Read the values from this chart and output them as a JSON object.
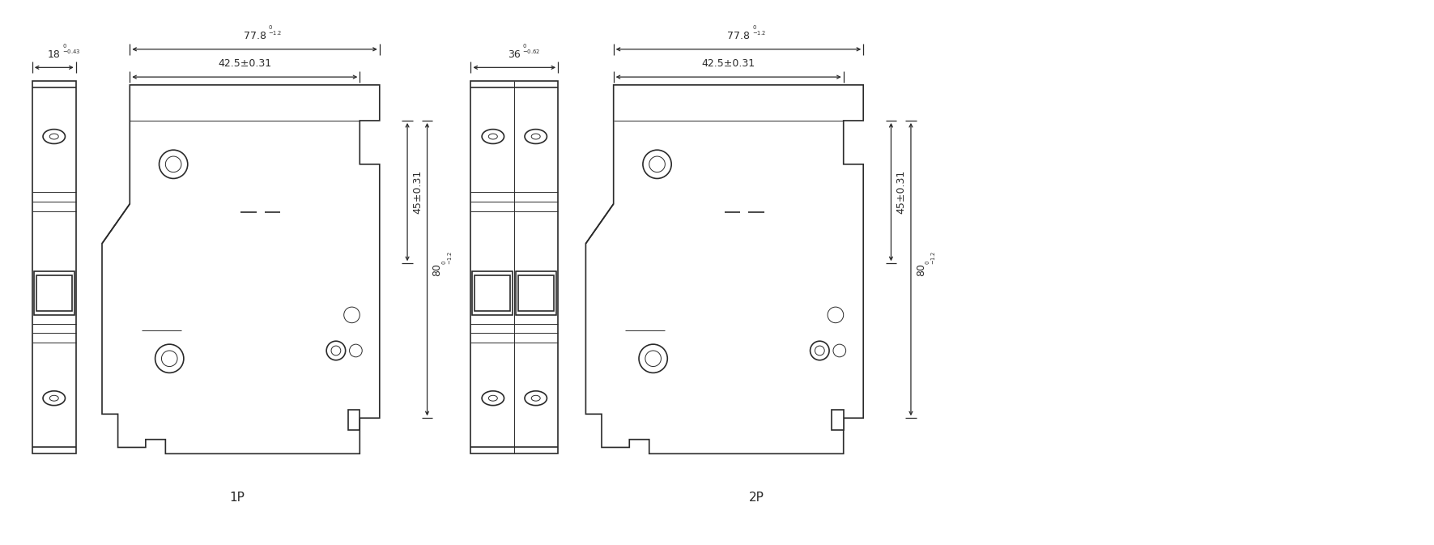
{
  "bg_color": "#ffffff",
  "line_color": "#2a2a2a",
  "fig_width": 17.71,
  "fig_height": 6.73,
  "dpi": 100,
  "label_1P": "1P",
  "label_2P": "2P",
  "dim_77_8": "77.8",
  "dim_42_5": "42.5±0.31",
  "dim_18": "18",
  "dim_45": "45±0.31",
  "dim_80": "80",
  "dim_36": "36"
}
